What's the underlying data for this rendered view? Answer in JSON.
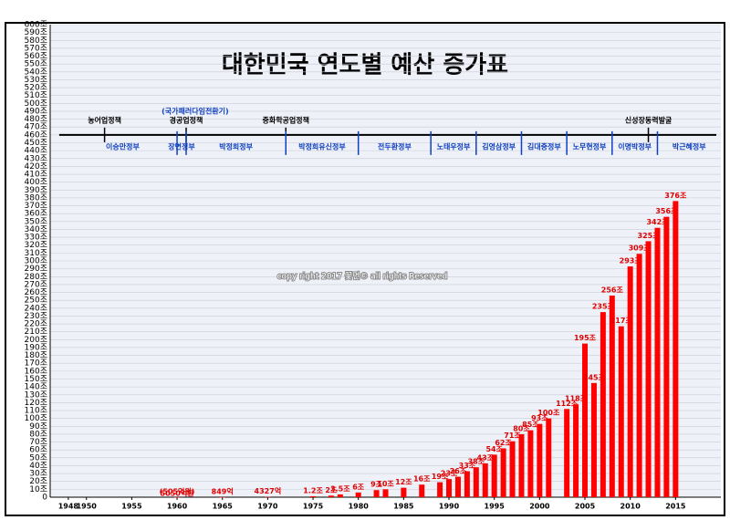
{
  "chart_data": {
    "type": "bar",
    "title": "대한민국 연도별 예산 증가표",
    "watermark": "copy right 2017 꽃먼© all rights Reserved",
    "color": "#ff0000",
    "x": [
      1960,
      1965,
      1970,
      1975,
      1977,
      1978,
      1980,
      1982,
      1983,
      1985,
      1987,
      1989,
      1990,
      1991,
      1992,
      1993,
      1994,
      1995,
      1996,
      1997,
      1998,
      1999,
      2000,
      2001,
      2003,
      2004,
      2005,
      2006,
      2007,
      2008,
      2009,
      2010,
      2011,
      2012,
      2013,
      2014,
      2015
    ],
    "values": [
      0.0505,
      0.0849,
      0.4327,
      1.2,
      2,
      3.5,
      6,
      9,
      10,
      12,
      16,
      19,
      23,
      26,
      33,
      38,
      43,
      54,
      62,
      71,
      80,
      85,
      93,
      100,
      112,
      118,
      195,
      145,
      235,
      256,
      217,
      293,
      309,
      325,
      342,
      356,
      376
    ],
    "value_labels": [
      "(505억원)",
      "849억",
      "4327억",
      "1.2조",
      "2조",
      "3.5조",
      "6조",
      "9조",
      "10조",
      "12조",
      "16조",
      "19조",
      "23조",
      "26조",
      "33조",
      "38조",
      "43조",
      "54조",
      "62조",
      "71조",
      "80조",
      "85조",
      "93조",
      "100조",
      "112조",
      "118조",
      "195조",
      "145조",
      "235조",
      "256조",
      "217조",
      "293조",
      "309조",
      "325조",
      "342조",
      "356조",
      "376조"
    ],
    "annotations": [
      {
        "text": "5050억환",
        "x": 1960
      }
    ],
    "xlim": [
      1946,
      2020
    ],
    "xticks": [
      1948,
      1950,
      1955,
      1960,
      1965,
      1970,
      1975,
      1980,
      1985,
      1990,
      1995,
      2000,
      2005,
      2010,
      2015
    ],
    "ylim": [
      0,
      600
    ],
    "yticks": [
      0,
      {
        "value": 10,
        "label": "10조"
      },
      {
        "value": 20,
        "label": "20조"
      },
      {
        "value": 30,
        "label": "30조"
      },
      {
        "value": 40,
        "label": "40조"
      },
      {
        "value": 50,
        "label": "50조"
      },
      {
        "value": 60,
        "label": "60조"
      },
      {
        "value": 70,
        "label": "70조"
      },
      {
        "value": 80,
        "label": "80조"
      },
      {
        "value": 90,
        "label": "90조"
      },
      {
        "value": 100,
        "label": "100조"
      },
      {
        "value": 110,
        "label": "110조"
      },
      {
        "value": 120,
        "label": "120조"
      },
      {
        "value": 130,
        "label": "130조"
      },
      {
        "value": 140,
        "label": "140조"
      },
      {
        "value": 150,
        "label": "150조"
      },
      {
        "value": 160,
        "label": "160조"
      },
      {
        "value": 170,
        "label": "170조"
      },
      {
        "value": 180,
        "label": "180조"
      },
      {
        "value": 190,
        "label": "190조"
      },
      {
        "value": 200,
        "label": "200조"
      },
      {
        "value": 210,
        "label": "210조"
      },
      {
        "value": 220,
        "label": "220조"
      },
      {
        "value": 230,
        "label": "230조"
      },
      {
        "value": 240,
        "label": "240조"
      },
      {
        "value": 250,
        "label": "250조"
      },
      {
        "value": 260,
        "label": "260조"
      },
      {
        "value": 270,
        "label": "270조"
      },
      {
        "value": 280,
        "label": "280조"
      },
      {
        "value": 290,
        "label": "290조"
      },
      {
        "value": 300,
        "label": "300조"
      },
      {
        "value": 310,
        "label": "310조"
      },
      {
        "value": 320,
        "label": "320조"
      },
      {
        "value": 330,
        "label": "330조"
      },
      {
        "value": 340,
        "label": "340조"
      },
      {
        "value": 350,
        "label": "350조"
      },
      {
        "value": 360,
        "label": "360조"
      },
      {
        "value": 370,
        "label": "370조"
      },
      {
        "value": 380,
        "label": "380조"
      },
      {
        "value": 390,
        "label": "390조"
      },
      {
        "value": 400,
        "label": "400조"
      },
      {
        "value": 410,
        "label": "410조"
      },
      {
        "value": 420,
        "label": "420조"
      },
      {
        "value": 430,
        "label": "430조"
      },
      {
        "value": 440,
        "label": "440조"
      },
      {
        "value": 450,
        "label": "450조"
      },
      {
        "value": 460,
        "label": "460조"
      },
      {
        "value": 470,
        "label": "470조"
      },
      {
        "value": 480,
        "label": "480조"
      },
      {
        "value": 490,
        "label": "490조"
      },
      {
        "value": 500,
        "label": "500조"
      },
      {
        "value": 510,
        "label": "510조"
      },
      {
        "value": 520,
        "label": "520조"
      },
      {
        "value": 530,
        "label": "530조"
      },
      {
        "value": 540,
        "label": "540조"
      },
      {
        "value": 550,
        "label": "550조"
      },
      {
        "value": 560,
        "label": "560조"
      },
      {
        "value": 570,
        "label": "570조"
      },
      {
        "value": 580,
        "label": "580조"
      },
      {
        "value": 590,
        "label": "590조"
      },
      {
        "value": 600,
        "label": "600조"
      }
    ],
    "grid": true,
    "timeline_level": 460,
    "policies": [
      {
        "name": "농어업정책",
        "x": 1952
      },
      {
        "name": "(국가패러다임전환기)",
        "x": 1962
      },
      {
        "name": "경공업정책",
        "x": 1961
      },
      {
        "name": "중화학공업정책",
        "x": 1972
      },
      {
        "name": "신성장동력발굴",
        "x": 2012
      }
    ],
    "eras": [
      {
        "name": "이승만정부",
        "start": 1948
      },
      {
        "name": "장면정부",
        "start": 1960
      },
      {
        "name": "박정희정부",
        "start": 1961
      },
      {
        "name": "박정희유신정부",
        "start": 1972
      },
      {
        "name": "전두환정부",
        "start": 1980
      },
      {
        "name": "노태우정부",
        "start": 1988
      },
      {
        "name": "김영삼정부",
        "start": 1993
      },
      {
        "name": "김대중정부",
        "start": 1998
      },
      {
        "name": "노무현정부",
        "start": 2003
      },
      {
        "name": "이명박정부",
        "start": 2008
      },
      {
        "name": "박근혜정부",
        "start": 2013
      }
    ]
  }
}
